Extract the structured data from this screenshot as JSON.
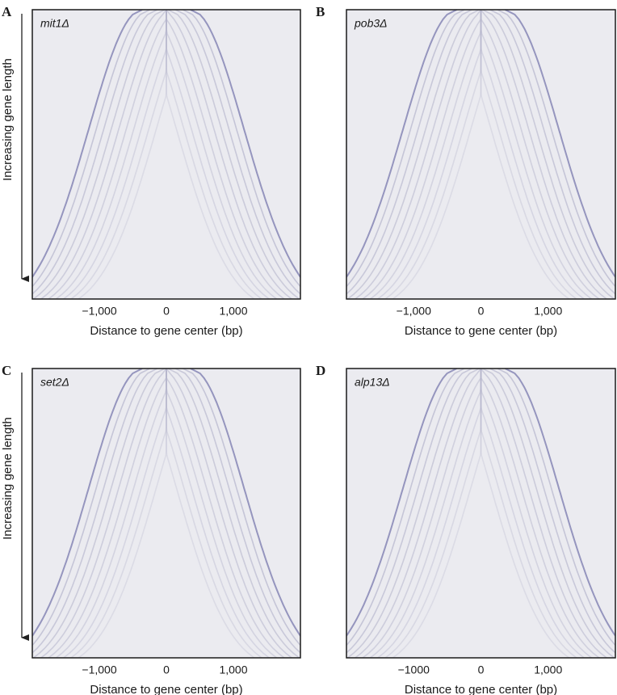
{
  "chart_data": [
    {
      "type": "heatmap",
      "panel": "A",
      "title": "mit1Δ",
      "xlabel": "Distance to gene center (bp)",
      "ylabel": "Increasing gene length",
      "xlim": [
        -2000,
        2000
      ],
      "xticks": [
        {
          "value": -1000,
          "label": "−1,000"
        },
        0,
        {
          "value": 1000,
          "label": "1,000"
        }
      ]
    },
    {
      "type": "heatmap",
      "panel": "B",
      "title": "pob3Δ",
      "xlabel": "Distance to gene center (bp)",
      "xlim": [
        -2000,
        2000
      ],
      "xticks": [
        {
          "value": -1000,
          "label": "−1,000"
        },
        0,
        {
          "value": 1000,
          "label": "1,000"
        }
      ]
    },
    {
      "type": "heatmap",
      "panel": "C",
      "title": "set2Δ",
      "xlabel": "Distance to gene center (bp)",
      "ylabel": "Increasing gene length",
      "xlim": [
        -2000,
        2000
      ],
      "xticks": [
        {
          "value": -1000,
          "label": "−1,000"
        },
        0,
        {
          "value": 1000,
          "label": "1,000"
        }
      ]
    },
    {
      "type": "heatmap",
      "panel": "D",
      "title": "alp13Δ",
      "xlabel": "Distance to gene center (bp)",
      "xlim": [
        -2000,
        2000
      ],
      "xticks": [
        {
          "value": -1000,
          "label": "−1000"
        },
        0,
        {
          "value": 1000,
          "label": "1,000"
        }
      ]
    }
  ]
}
